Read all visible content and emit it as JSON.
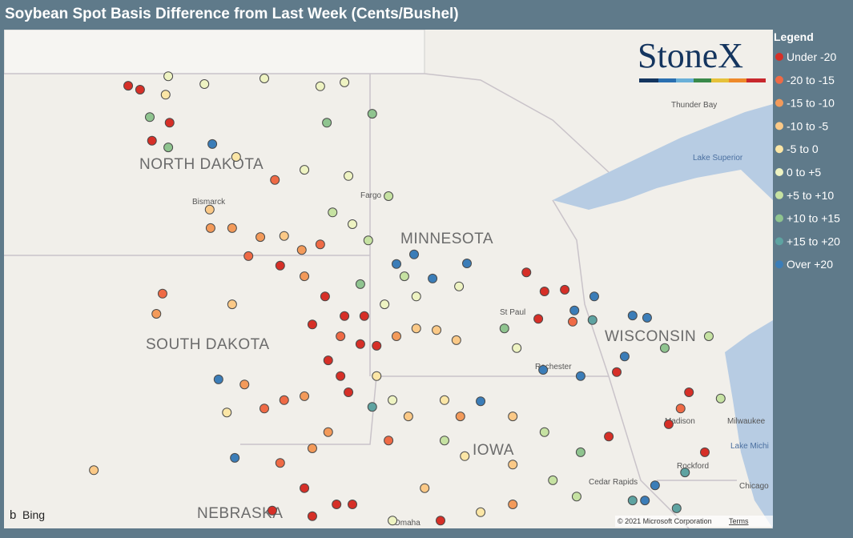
{
  "title": "Soybean Spot Basis Difference from Last Week (Cents/Bushel)",
  "logo": "StoneX",
  "legend": {
    "title": "Legend",
    "items": [
      {
        "label": "Under -20",
        "color": "#d62f27"
      },
      {
        "label": "-20 to -15",
        "color": "#ef6a45"
      },
      {
        "label": "-15 to -10",
        "color": "#f39a5a"
      },
      {
        "label": "-10 to -5",
        "color": "#fbc987"
      },
      {
        "label": "-5 to 0",
        "color": "#fbe6a6"
      },
      {
        "label": "0 to +5",
        "color": "#eef3c2"
      },
      {
        "label": "+5 to +10",
        "color": "#c6e2a2"
      },
      {
        "label": "+10 to +15",
        "color": "#8fc48f"
      },
      {
        "label": "+15 to +20",
        "color": "#5ea3a1"
      },
      {
        "label": "Over +20",
        "color": "#3b7db8"
      }
    ]
  },
  "map_labels": {
    "north_dakota": "NORTH DAKOTA",
    "south_dakota": "SOUTH DAKOTA",
    "minnesota": "MINNESOTA",
    "wisconsin": "WISCONSIN",
    "nebraska": "NEBRASKA",
    "iowa": "IOWA",
    "bismarck": "Bismarck",
    "fargo": "Fargo",
    "st_paul": "St Paul",
    "rochester": "Rochester",
    "madison": "Madison",
    "milwaukee": "Milwaukee",
    "rockford": "Rockford",
    "cedar_rapids": "Cedar Rapids",
    "chicago": "Chicago",
    "omaha": "Omaha",
    "thunder_bay": "Thunder Bay",
    "lake_superior": "Lake Superior",
    "lake_michigan": "Lake Michi"
  },
  "attribution": {
    "provider": "Bing",
    "copyright": "© 2021 Microsoft Corporation",
    "terms": "Terms"
  },
  "points": [
    [
      -102.09,
      48.97,
      0
    ],
    [
      -101.82,
      48.9,
      0
    ],
    [
      -101.18,
      49.14,
      5
    ],
    [
      -101.24,
      48.81,
      4
    ],
    [
      -100.36,
      49.0,
      5
    ],
    [
      -99.0,
      49.1,
      5
    ],
    [
      -97.73,
      48.96,
      5
    ],
    [
      -97.18,
      49.03,
      5
    ],
    [
      -101.6,
      48.41,
      7
    ],
    [
      -101.15,
      48.31,
      0
    ],
    [
      -101.55,
      47.99,
      0
    ],
    [
      -101.18,
      47.87,
      7
    ],
    [
      -100.18,
      47.93,
      9
    ],
    [
      -99.64,
      47.7,
      4
    ],
    [
      -98.76,
      47.29,
      1
    ],
    [
      -98.09,
      47.47,
      5
    ],
    [
      -97.58,
      48.31,
      7
    ],
    [
      -96.55,
      48.47,
      7
    ],
    [
      -97.09,
      47.36,
      5
    ],
    [
      -96.18,
      47.0,
      6
    ],
    [
      -100.24,
      46.76,
      3
    ],
    [
      -100.22,
      46.43,
      2
    ],
    [
      -99.73,
      46.43,
      2
    ],
    [
      -99.09,
      46.27,
      2
    ],
    [
      -98.55,
      46.29,
      3
    ],
    [
      -98.15,
      46.04,
      2
    ],
    [
      -99.36,
      45.93,
      1
    ],
    [
      -98.64,
      45.76,
      0
    ],
    [
      -97.73,
      46.14,
      1
    ],
    [
      -101.31,
      45.26,
      1
    ],
    [
      -101.45,
      44.9,
      2
    ],
    [
      -99.73,
      45.07,
      3
    ],
    [
      -98.09,
      45.57,
      2
    ],
    [
      -97.62,
      45.21,
      0
    ],
    [
      -97.45,
      46.71,
      6
    ],
    [
      -97.0,
      46.5,
      5
    ],
    [
      -96.64,
      46.21,
      6
    ],
    [
      -96.0,
      45.79,
      9
    ],
    [
      -95.6,
      45.96,
      9
    ],
    [
      -95.82,
      45.57,
      6
    ],
    [
      -95.18,
      45.53,
      9
    ],
    [
      -94.4,
      45.8,
      9
    ],
    [
      -96.82,
      45.43,
      7
    ],
    [
      -96.27,
      45.07,
      5
    ],
    [
      -95.55,
      45.21,
      5
    ],
    [
      -94.58,
      45.39,
      5
    ],
    [
      -93.05,
      45.64,
      0
    ],
    [
      -92.64,
      45.3,
      0
    ],
    [
      -92.18,
      45.33,
      0
    ],
    [
      -91.51,
      45.21,
      9
    ],
    [
      -91.96,
      44.96,
      9
    ],
    [
      -92.78,
      44.81,
      0
    ],
    [
      -92.0,
      44.76,
      1
    ],
    [
      -91.55,
      44.79,
      8
    ],
    [
      -90.64,
      44.87,
      9
    ],
    [
      -90.31,
      44.83,
      9
    ],
    [
      -93.55,
      44.64,
      7
    ],
    [
      -93.27,
      44.29,
      5
    ],
    [
      -97.91,
      44.71,
      0
    ],
    [
      -97.18,
      44.86,
      0
    ],
    [
      -96.73,
      44.86,
      0
    ],
    [
      -97.27,
      44.5,
      1
    ],
    [
      -96.82,
      44.36,
      0
    ],
    [
      -96.45,
      44.33,
      0
    ],
    [
      -96.0,
      44.5,
      2
    ],
    [
      -95.55,
      44.64,
      3
    ],
    [
      -95.09,
      44.61,
      3
    ],
    [
      -94.64,
      44.43,
      3
    ],
    [
      -97.55,
      44.07,
      0
    ],
    [
      -97.27,
      43.79,
      0
    ],
    [
      -97.09,
      43.5,
      0
    ],
    [
      -98.09,
      43.43,
      2
    ],
    [
      -98.55,
      43.36,
      1
    ],
    [
      -99.0,
      43.21,
      1
    ],
    [
      -99.45,
      43.64,
      2
    ],
    [
      -99.85,
      43.14,
      4
    ],
    [
      -100.04,
      43.73,
      9
    ],
    [
      -99.67,
      42.33,
      9
    ],
    [
      -102.87,
      42.11,
      3
    ],
    [
      -98.64,
      42.24,
      1
    ],
    [
      -97.91,
      42.5,
      2
    ],
    [
      -97.55,
      42.79,
      2
    ],
    [
      -96.45,
      43.79,
      4
    ],
    [
      -96.09,
      43.36,
      5
    ],
    [
      -95.73,
      43.07,
      3
    ],
    [
      -94.91,
      43.36,
      4
    ],
    [
      -94.55,
      43.07,
      2
    ],
    [
      -94.09,
      43.34,
      9
    ],
    [
      -93.36,
      43.07,
      3
    ],
    [
      -92.64,
      42.79,
      6
    ],
    [
      -96.55,
      43.24,
      8
    ],
    [
      -96.18,
      42.64,
      1
    ],
    [
      -94.91,
      42.64,
      6
    ],
    [
      -94.45,
      42.36,
      4
    ],
    [
      -93.36,
      42.21,
      3
    ],
    [
      -92.45,
      41.93,
      6
    ],
    [
      -91.82,
      42.43,
      7
    ],
    [
      -91.18,
      42.71,
      0
    ],
    [
      -95.36,
      41.79,
      3
    ],
    [
      -94.09,
      41.36,
      4
    ],
    [
      -93.36,
      41.5,
      2
    ],
    [
      -91.91,
      41.64,
      6
    ],
    [
      -90.64,
      41.57,
      8
    ],
    [
      -90.36,
      41.57,
      9
    ],
    [
      -89.64,
      41.43,
      8
    ],
    [
      -90.13,
      41.84,
      9
    ],
    [
      -89.45,
      42.07,
      8
    ],
    [
      -89.0,
      42.43,
      0
    ],
    [
      -89.82,
      42.93,
      0
    ],
    [
      -89.55,
      43.21,
      1
    ],
    [
      -89.36,
      43.5,
      0
    ],
    [
      -88.64,
      43.39,
      6
    ],
    [
      -88.91,
      44.5,
      6
    ],
    [
      -89.91,
      44.29,
      7
    ],
    [
      -90.82,
      44.14,
      9
    ],
    [
      -91.0,
      43.86,
      0
    ],
    [
      -91.82,
      43.79,
      9
    ],
    [
      -92.67,
      43.9,
      9
    ],
    [
      -98.09,
      41.79,
      0
    ],
    [
      -97.36,
      41.5,
      0
    ],
    [
      -97.0,
      41.5,
      0
    ],
    [
      -97.91,
      41.29,
      0
    ],
    [
      -96.09,
      41.21,
      5
    ],
    [
      -95.0,
      41.21,
      0
    ],
    [
      -98.82,
      41.39,
      0
    ]
  ]
}
